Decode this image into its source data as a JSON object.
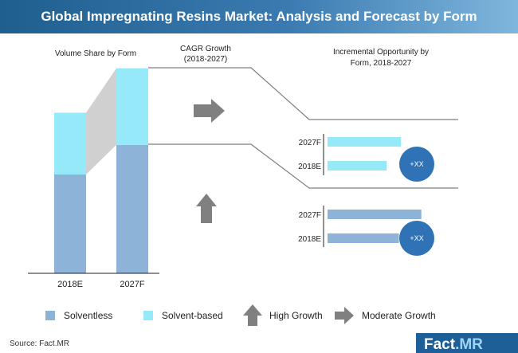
{
  "header": {
    "title": "Global Impregnating Resins Market: Analysis and Forecast by Form"
  },
  "colors": {
    "solventless": "#8db3d9",
    "solvent_based": "#96e9f8",
    "circle": "#2f72b5",
    "arrow": "#808080",
    "line": "#7f7f7f"
  },
  "chart_data": [
    {
      "type": "bar",
      "title": "Volume Share by Form",
      "categories": [
        "2018E",
        "2027F"
      ],
      "series": [
        {
          "name": "Solventless",
          "values": [
            40,
            52
          ]
        },
        {
          "name": "Solvent-based",
          "values": [
            25,
            31
          ]
        }
      ]
    },
    {
      "type": "bar",
      "title": "Incremental Opportunity by Form, 2018-2027",
      "orientation": "horizontal",
      "groups": [
        {
          "categories": [
            "2027F",
            "2018E"
          ],
          "values": [
            72,
            58
          ],
          "circle_label": "+XX"
        },
        {
          "categories": [
            "2027F",
            "2018E"
          ],
          "values": [
            92,
            70
          ],
          "circle_label": "+XX"
        }
      ]
    }
  ],
  "cagr": {
    "title_line1": "CAGR Growth",
    "title_line2": "(2018-2027)"
  },
  "legend": {
    "solventless": "Solventless",
    "solvent_based": "Solvent-based",
    "high_growth": "High Growth",
    "moderate_growth": "Moderate Growth"
  },
  "footer": {
    "source": "Source: Fact.MR",
    "brand_main": "Fact",
    "brand_suffix": ".MR"
  }
}
